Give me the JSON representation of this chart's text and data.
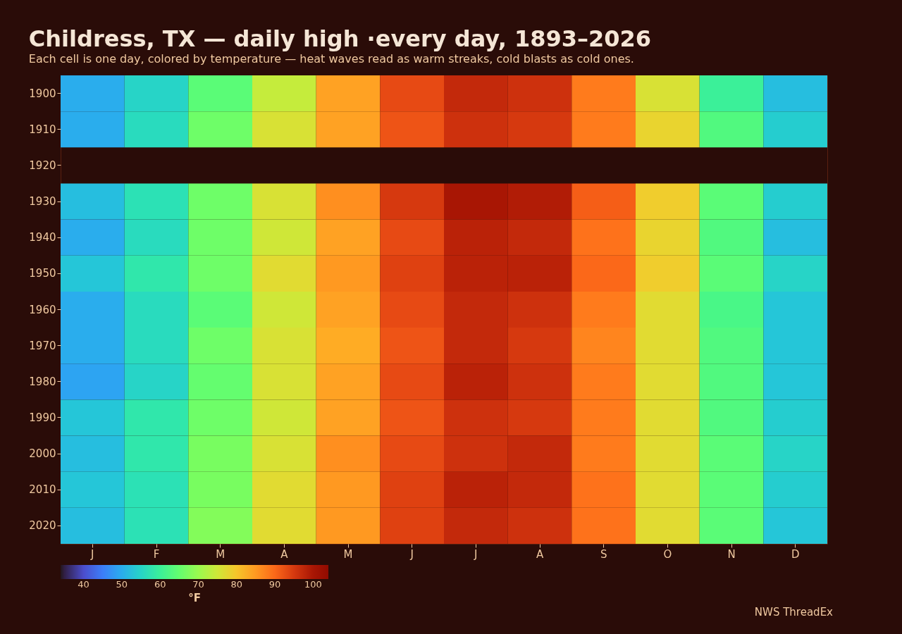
{
  "chart_data": {
    "type": "heatmap",
    "title": "Childress, TX — daily high ·every day, 1893–2026",
    "subtitle": "Each cell is one day, colored by temperature — heat waves read as warm streaks, cold blasts as cold ones.",
    "categories": [
      "J",
      "F",
      "M",
      "A",
      "M",
      "J",
      "J",
      "A",
      "S",
      "O",
      "N",
      "D"
    ],
    "y_categories": [
      "1900",
      "1910",
      "1920",
      "1930",
      "1940",
      "1950",
      "1960",
      "1970",
      "1980",
      "1990",
      "2000",
      "2010",
      "2020"
    ],
    "cells": [
      [
        50,
        55,
        64,
        74,
        84,
        93,
        97,
        96,
        88,
        76,
        60,
        52
      ],
      [
        50,
        56,
        66,
        76,
        84,
        92,
        96,
        95,
        88,
        78,
        63,
        54
      ],
      [
        null,
        null,
        null,
        null,
        null,
        null,
        null,
        null,
        null,
        null,
        null,
        null
      ],
      [
        52,
        57,
        66,
        76,
        86,
        95,
        100,
        99,
        91,
        79,
        64,
        54
      ],
      [
        50,
        56,
        66,
        75,
        84,
        93,
        98,
        97,
        89,
        78,
        63,
        52
      ],
      [
        53,
        58,
        66,
        77,
        85,
        94,
        98,
        98,
        90,
        79,
        64,
        55
      ],
      [
        50,
        56,
        64,
        75,
        84,
        93,
        97,
        96,
        88,
        77,
        62,
        53
      ],
      [
        50,
        56,
        66,
        76,
        83,
        92,
        97,
        95,
        87,
        77,
        63,
        53
      ],
      [
        49,
        55,
        65,
        76,
        84,
        93,
        98,
        96,
        88,
        77,
        63,
        53
      ],
      [
        53,
        58,
        66,
        75,
        84,
        92,
        96,
        95,
        88,
        77,
        63,
        54
      ],
      [
        52,
        58,
        67,
        76,
        86,
        93,
        96,
        97,
        88,
        77,
        64,
        55
      ],
      [
        53,
        57,
        67,
        77,
        85,
        94,
        98,
        97,
        89,
        77,
        64,
        54
      ],
      [
        52,
        57,
        68,
        77,
        85,
        94,
        97,
        96,
        89,
        77,
        64,
        53
      ]
    ],
    "clabel": "°F",
    "clim": [
      34,
      104
    ],
    "cticks": [
      40,
      50,
      60,
      70,
      80,
      90,
      100
    ],
    "annotations": [
      "NWS ThreadEx"
    ]
  }
}
